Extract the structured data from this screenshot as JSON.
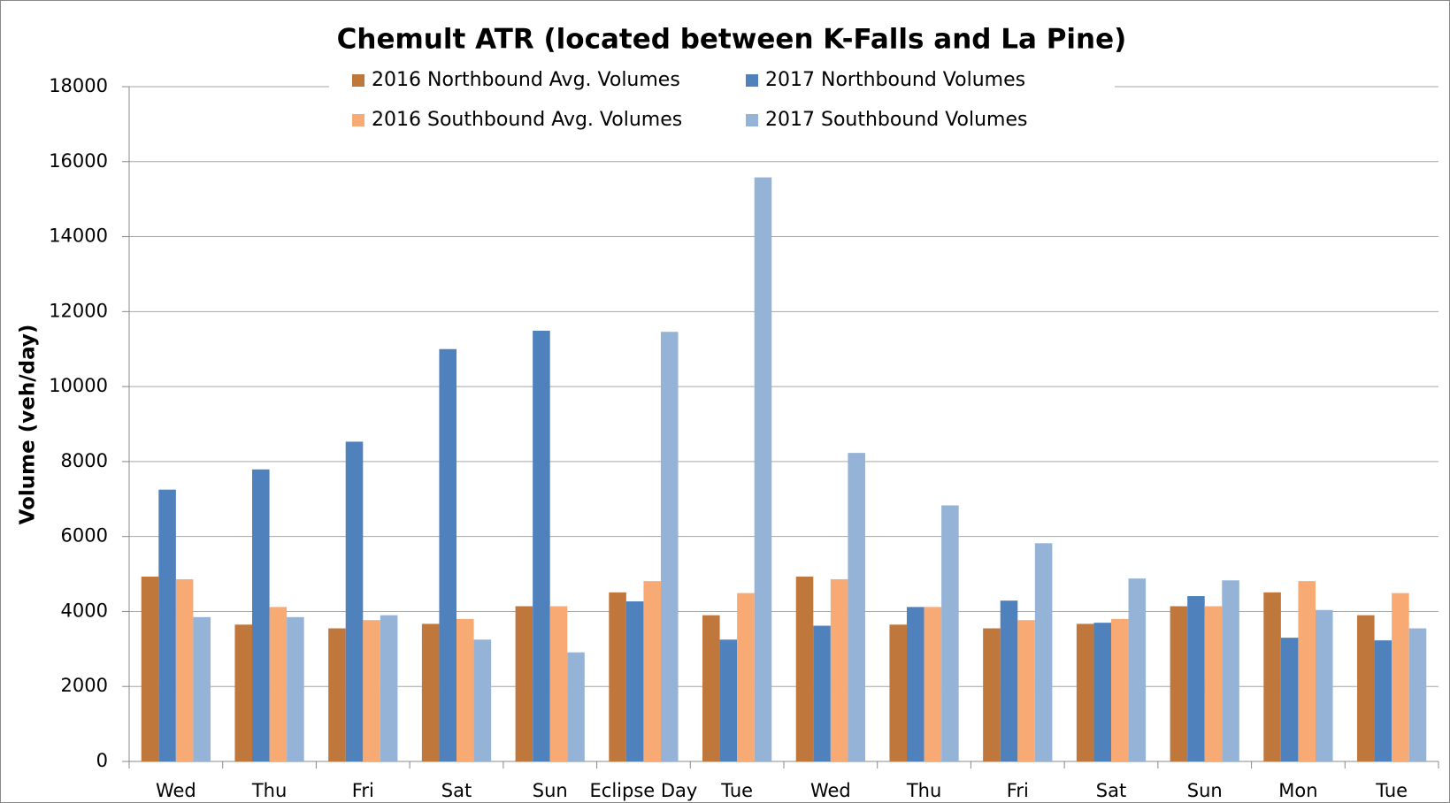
{
  "chart_data": {
    "type": "bar",
    "title": "Chemult ATR (located between K-Falls and La Pine)",
    "y_label": "Volume (veh/day)",
    "categories": [
      "Wed",
      "Thu",
      "Fri",
      "Sat",
      "Sun",
      "Eclipse Day",
      "Tue",
      "Wed",
      "Thu",
      "Fri",
      "Sat",
      "Sun",
      "Mon",
      "Tue"
    ],
    "series": [
      {
        "name": "2016 Northbound Avg. Volumes",
        "color": "#c0773b",
        "values": [
          4930,
          3650,
          3550,
          3670,
          4140,
          4510,
          3900,
          4930,
          3650,
          3550,
          3670,
          4140,
          4510,
          3900
        ]
      },
      {
        "name": "2017 Northbound Volumes",
        "color": "#4f81bd",
        "values": [
          7250,
          7790,
          8530,
          11000,
          11490,
          4270,
          3250,
          3620,
          4120,
          4290,
          3700,
          4410,
          3300,
          3230
        ]
      },
      {
        "name": "2016 Southbound Avg. Volumes",
        "color": "#f7aa74",
        "values": [
          4860,
          4120,
          3770,
          3800,
          4140,
          4810,
          4490,
          4860,
          4120,
          3770,
          3800,
          4140,
          4810,
          4490
        ]
      },
      {
        "name": "2017 Southbound Volumes",
        "color": "#95b3d7",
        "values": [
          3850,
          3850,
          3900,
          3250,
          2910,
          11460,
          15580,
          8230,
          6830,
          5820,
          4880,
          4830,
          4040,
          3550
        ]
      }
    ],
    "ylim": [
      0,
      18000
    ],
    "yticks": [
      0,
      2000,
      4000,
      6000,
      8000,
      10000,
      12000,
      14000,
      16000,
      18000
    ],
    "grid": true
  }
}
